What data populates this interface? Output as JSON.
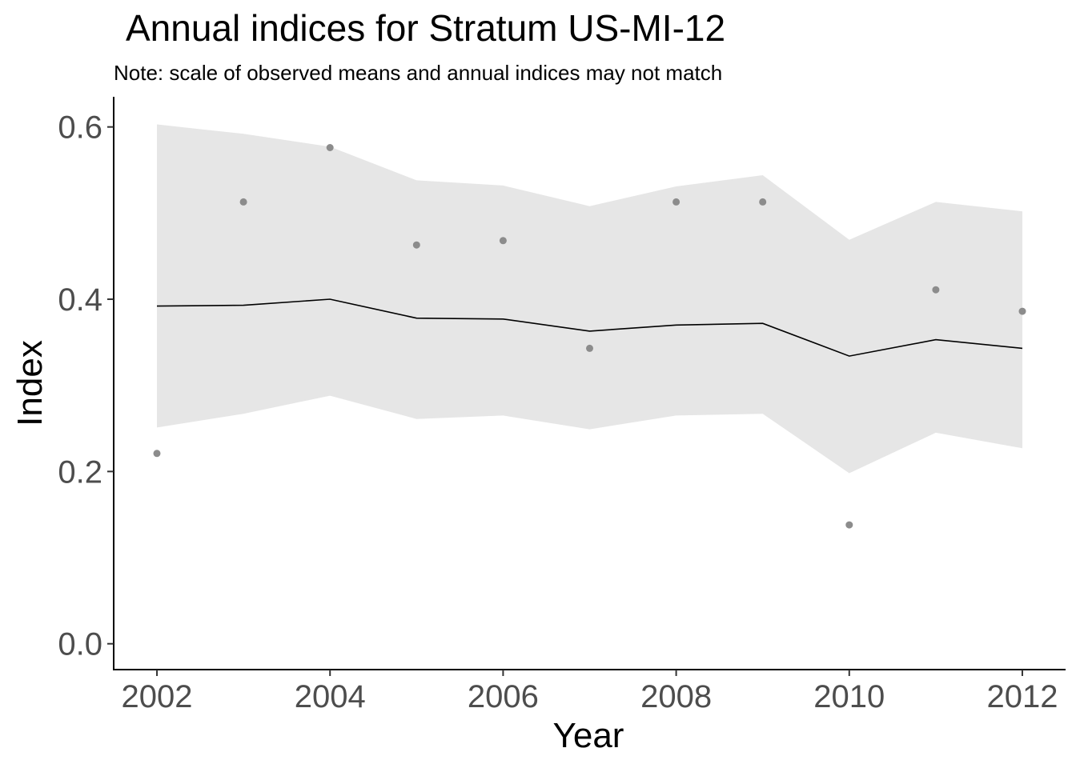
{
  "chart_data": {
    "type": "line",
    "title": "Annual indices for Stratum US-MI-12",
    "subtitle": "Note: scale of observed means and annual indices may not match",
    "xlabel": "Year",
    "ylabel": "Index",
    "xlim": [
      2001.5,
      2012.5
    ],
    "ylim": [
      -0.03,
      0.635
    ],
    "x_ticks": [
      2002,
      2004,
      2006,
      2008,
      2010,
      2012
    ],
    "x_tick_labels": [
      "2002",
      "2004",
      "2006",
      "2008",
      "2010",
      "2012"
    ],
    "y_ticks": [
      0.0,
      0.2,
      0.4,
      0.6
    ],
    "y_tick_labels": [
      "0.0",
      "0.2",
      "0.4",
      "0.6"
    ],
    "grid": false,
    "x": [
      2002,
      2003,
      2004,
      2005,
      2006,
      2007,
      2008,
      2009,
      2010,
      2011,
      2012
    ],
    "series": [
      {
        "kind": "line",
        "color": "#000000",
        "values": [
          0.392,
          0.393,
          0.4,
          0.378,
          0.377,
          0.363,
          0.37,
          0.372,
          0.334,
          0.353,
          0.343
        ]
      },
      {
        "kind": "ribbon",
        "color": "#e6e6e6",
        "lower": [
          0.251,
          0.267,
          0.288,
          0.261,
          0.265,
          0.249,
          0.265,
          0.267,
          0.198,
          0.245,
          0.227
        ],
        "upper": [
          0.603,
          0.592,
          0.577,
          0.538,
          0.532,
          0.508,
          0.531,
          0.544,
          0.469,
          0.513,
          0.502
        ]
      },
      {
        "kind": "points",
        "color": "#8c8c8c",
        "values": [
          0.221,
          0.513,
          0.576,
          0.463,
          0.468,
          0.343,
          0.513,
          0.513,
          0.138,
          0.411,
          0.386
        ]
      }
    ]
  }
}
